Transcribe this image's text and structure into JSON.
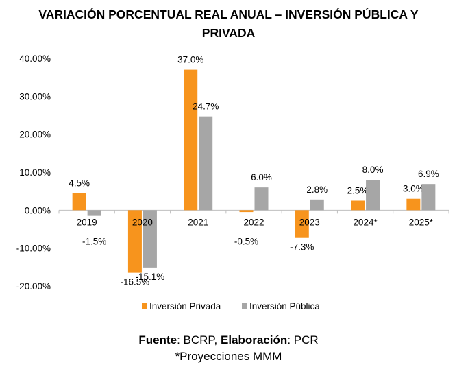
{
  "title_line1": "VARIACIÓN PORCENTUAL REAL ANUAL – INVERSIÓN PÚBLICA Y",
  "title_line2": "PRIVADA",
  "footer": {
    "source_label": "Fuente",
    "source_value": ": BCRP, ",
    "elab_label": "Elaboración",
    "elab_value": ": PCR",
    "note": "*Proyecciones MMM"
  },
  "chart_data": {
    "type": "bar",
    "categories": [
      "2019",
      "2020",
      "2021",
      "2022",
      "2023",
      "2024*",
      "2025*"
    ],
    "series": [
      {
        "name": "Inversión Privada",
        "color": "#F7941D",
        "values": [
          4.5,
          -16.5,
          37.0,
          -0.5,
          -7.3,
          2.5,
          3.0
        ],
        "labels": [
          "4.5%",
          "-16.5%",
          "37.0%",
          "-0.5%",
          "-7.3%",
          "2.5%",
          "3.0%"
        ]
      },
      {
        "name": "Inversión Pública",
        "color": "#A6A6A6",
        "values": [
          -1.5,
          -15.1,
          24.7,
          6.0,
          2.8,
          8.0,
          6.9
        ],
        "labels": [
          "-1.5%",
          "-15.1%",
          "24.7%",
          "6.0%",
          "2.8%",
          "8.0%",
          "6.9%"
        ]
      }
    ],
    "y_ticks": [
      40,
      30,
      20,
      10,
      0,
      -10,
      -20
    ],
    "y_tick_labels": [
      "40.00%",
      "30.00%",
      "20.00%",
      "10.00%",
      "0.00%",
      "-10.00%",
      "-20.00%"
    ],
    "ylim": [
      -20,
      40
    ],
    "legend_position": "bottom",
    "grid": false
  }
}
